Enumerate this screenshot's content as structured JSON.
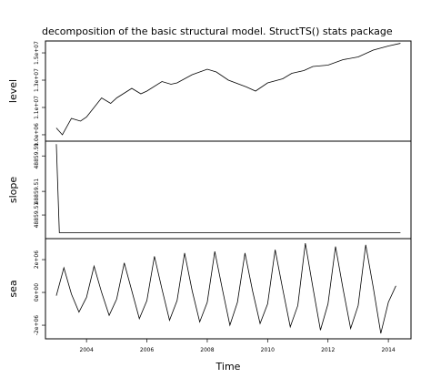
{
  "chart_data": [
    {
      "type": "line",
      "title": "decomposition of the basic structural model. StructTS() stats package",
      "ylabel": "level",
      "color": "#000000",
      "x": [
        2003.0,
        2003.2,
        2003.5,
        2003.8,
        2004.0,
        2004.5,
        2004.8,
        2005.0,
        2005.5,
        2005.8,
        2006.0,
        2006.5,
        2006.8,
        2007.0,
        2007.5,
        2008.0,
        2008.3,
        2008.7,
        2009.3,
        2009.6,
        2010.0,
        2010.5,
        2010.8,
        2011.2,
        2011.5,
        2012.0,
        2012.5,
        2013.0,
        2013.5,
        2014.0,
        2014.4
      ],
      "values": [
        9500000,
        9000000,
        10200000,
        10000000,
        10300000,
        11700000,
        11300000,
        11700000,
        12400000,
        12000000,
        12200000,
        12900000,
        12700000,
        12800000,
        13400000,
        13800000,
        13600000,
        13000000,
        12500000,
        12200000,
        12800000,
        13100000,
        13500000,
        13700000,
        14000000,
        14100000,
        14500000,
        14700000,
        15200000,
        15500000,
        15700000
      ],
      "xlim": [
        2002.64,
        2014.75
      ],
      "ylim": [
        8530000,
        15870000
      ],
      "yticks": [
        {
          "value": 9000000,
          "label": "9.0e+06"
        },
        {
          "value": 11000000,
          "label": "1.1e+07"
        },
        {
          "value": 13000000,
          "label": "1.3e+07"
        },
        {
          "value": 15000000,
          "label": "1.5e+07"
        }
      ]
    },
    {
      "type": "line",
      "ylabel": "slope",
      "color": "#000000",
      "x": [
        2003.0,
        2003.1,
        2014.4
      ],
      "values": [
        48859.52,
        48859.505,
        48859.505
      ],
      "xlim": [
        2002.64,
        2014.75
      ],
      "ylim": [
        48859.504,
        48859.5205
      ],
      "yticks": [
        {
          "value": 48859.508,
          "label": "48859.51"
        },
        {
          "value": 48859.512,
          "label": "48859.51"
        },
        {
          "value": 48859.518,
          "label": "48859.51"
        }
      ]
    },
    {
      "type": "line",
      "ylabel": "sea",
      "xlabel": "Time",
      "color": "#000000",
      "x": [
        2003.0,
        2003.25,
        2003.5,
        2003.75,
        2004.0,
        2004.25,
        2004.5,
        2004.75,
        2005.0,
        2005.25,
        2005.5,
        2005.75,
        2006.0,
        2006.25,
        2006.5,
        2006.75,
        2007.0,
        2007.25,
        2007.5,
        2007.75,
        2008.0,
        2008.25,
        2008.5,
        2008.75,
        2009.0,
        2009.25,
        2009.5,
        2009.75,
        2010.0,
        2010.25,
        2010.5,
        2010.75,
        2011.0,
        2011.25,
        2011.5,
        2011.75,
        2012.0,
        2012.25,
        2012.5,
        2012.75,
        2013.0,
        2013.25,
        2013.5,
        2013.75,
        2014.0,
        2014.25
      ],
      "values": [
        -200000,
        1500000,
        -100000,
        -1200000,
        -300000,
        1600000,
        0,
        -1400000,
        -400000,
        1800000,
        100000,
        -1600000,
        -500000,
        2200000,
        200000,
        -1700000,
        -500000,
        2400000,
        100000,
        -1800000,
        -600000,
        2500000,
        200000,
        -2000000,
        -600000,
        2400000,
        100000,
        -1900000,
        -700000,
        2600000,
        200000,
        -2100000,
        -800000,
        3000000,
        300000,
        -2300000,
        -700000,
        2800000,
        200000,
        -2200000,
        -800000,
        2900000,
        300000,
        -2500000,
        -600000,
        400000
      ],
      "xlim": [
        2002.64,
        2014.75
      ],
      "ylim": [
        -2830000,
        3280000
      ],
      "yticks": [
        {
          "value": -2000000,
          "label": "-2e+06"
        },
        {
          "value": 0,
          "label": "0e+00"
        },
        {
          "value": 2000000,
          "label": "2e+06"
        }
      ],
      "xticks": [
        2004,
        2006,
        2008,
        2010,
        2012,
        2014
      ]
    }
  ]
}
